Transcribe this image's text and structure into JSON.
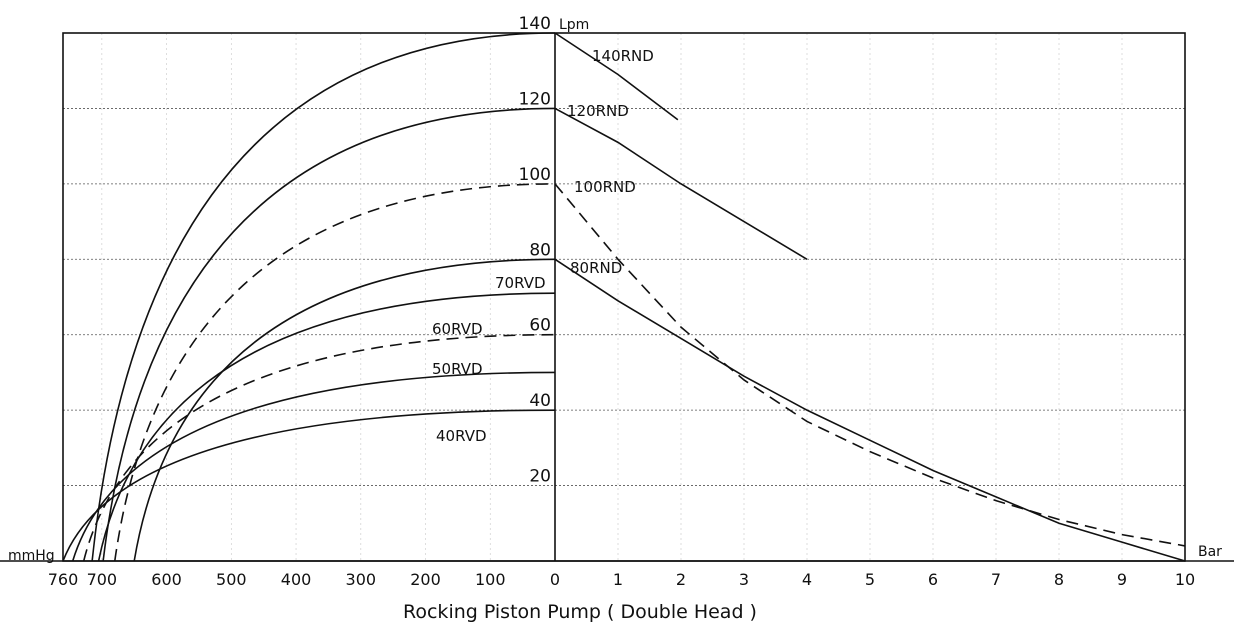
{
  "chart_data": {
    "type": "line",
    "title": "Rocking Piston Pump ( Double Head )",
    "y_unit_label": "Lpm",
    "left_unit_label": "mmHg",
    "right_unit_label": "Bar",
    "y_range": [
      0,
      140
    ],
    "y_ticks": [
      "20",
      "40",
      "60",
      "80",
      "100",
      "120",
      "140"
    ],
    "vacuum_axis": {
      "label": "mmHg",
      "range": [
        760,
        0
      ],
      "ticks": [
        "760",
        "700",
        "600",
        "500",
        "400",
        "300",
        "200",
        "100",
        "0"
      ]
    },
    "pressure_axis": {
      "label": "Bar",
      "range": [
        0,
        10
      ],
      "ticks": [
        "1",
        "2",
        "3",
        "4",
        "5",
        "6",
        "7",
        "8",
        "9",
        "10"
      ]
    },
    "grid": true,
    "vacuum_series": [
      {
        "name": "",
        "style": "solid",
        "start": 715,
        "peak": 140
      },
      {
        "name": "",
        "style": "solid",
        "start": 698,
        "peak": 120
      },
      {
        "name": "",
        "style": "dashed",
        "start": 680,
        "peak": 100
      },
      {
        "name": "",
        "style": "solid",
        "start": 650,
        "peak": 80
      },
      {
        "name": "70RVD",
        "style": "solid",
        "start": 705,
        "peak": 71
      },
      {
        "name": "60RVD",
        "style": "dashed",
        "start": 728,
        "peak": 60
      },
      {
        "name": "50RVD",
        "style": "solid",
        "start": 745,
        "peak": 50
      },
      {
        "name": "40RVD",
        "style": "solid",
        "start": 760,
        "peak": 40
      }
    ],
    "pressure_series": [
      {
        "name": "140RND",
        "style": "solid",
        "points": [
          [
            0,
            140
          ],
          [
            1,
            129
          ],
          [
            1.95,
            117
          ]
        ]
      },
      {
        "name": "120RND",
        "style": "solid",
        "points": [
          [
            0,
            120
          ],
          [
            1,
            111
          ],
          [
            2,
            100
          ],
          [
            3,
            90
          ],
          [
            4,
            80
          ]
        ]
      },
      {
        "name": "100RND",
        "style": "dashed",
        "points": [
          [
            0,
            100
          ],
          [
            1,
            80
          ],
          [
            2,
            62
          ],
          [
            3,
            48
          ],
          [
            4,
            37
          ],
          [
            5,
            29
          ],
          [
            6,
            22
          ],
          [
            7,
            16
          ],
          [
            8,
            11
          ],
          [
            9,
            7
          ],
          [
            10,
            4
          ]
        ]
      },
      {
        "name": "80RND",
        "style": "solid",
        "points": [
          [
            0,
            80
          ],
          [
            1,
            69
          ],
          [
            2,
            59
          ],
          [
            3,
            49
          ],
          [
            4,
            40
          ],
          [
            5,
            32
          ],
          [
            6,
            24
          ],
          [
            7,
            17
          ],
          [
            8,
            10
          ],
          [
            9,
            5
          ],
          [
            10,
            0
          ]
        ]
      }
    ]
  }
}
